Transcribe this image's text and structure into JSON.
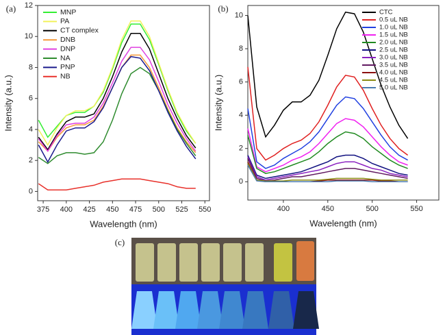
{
  "chart_data": [
    {
      "type": "line",
      "panel": "(a)",
      "x_label": "Wavelength (nm)",
      "y_label": "Intensity (a.u.)",
      "x": [
        370,
        380,
        390,
        400,
        410,
        420,
        430,
        440,
        450,
        460,
        470,
        480,
        490,
        500,
        510,
        520,
        530,
        540
      ],
      "xlim": [
        369,
        555
      ],
      "xticks": [
        375,
        400,
        425,
        450,
        475,
        500,
        525,
        550
      ],
      "ylim": [
        -0.6,
        12
      ],
      "yticks": [
        0,
        2,
        4,
        6,
        8,
        10,
        12
      ],
      "legend": "upper left",
      "series": [
        {
          "name": "MNP",
          "color": "#33ee33",
          "values": [
            4.6,
            3.5,
            4.2,
            4.9,
            5.1,
            5.1,
            5.5,
            6.4,
            7.9,
            9.6,
            10.8,
            10.8,
            9.8,
            8.2,
            6.5,
            5.0,
            3.9,
            3.1
          ]
        },
        {
          "name": "PA",
          "color": "#f2f25a",
          "values": [
            4.0,
            3.0,
            4.1,
            4.9,
            5.2,
            5.2,
            5.5,
            6.5,
            8.0,
            9.8,
            11.0,
            11.0,
            10.0,
            8.3,
            6.6,
            5.1,
            4.0,
            3.1
          ]
        },
        {
          "name": "CT complex",
          "color": "#000000",
          "values": [
            3.5,
            2.7,
            3.7,
            4.5,
            4.8,
            4.8,
            5.0,
            6.0,
            7.4,
            9.0,
            10.2,
            10.2,
            9.2,
            7.6,
            6.0,
            4.7,
            3.6,
            2.8
          ]
        },
        {
          "name": "DNB",
          "color": "#f59a3a",
          "values": [
            3.2,
            2.6,
            3.5,
            4.1,
            4.3,
            4.3,
            4.6,
            5.5,
            6.7,
            8.0,
            8.8,
            8.8,
            8.0,
            6.7,
            5.3,
            4.1,
            3.2,
            2.5
          ]
        },
        {
          "name": "DNP",
          "color": "#e040e0",
          "values": [
            3.4,
            2.6,
            3.6,
            4.3,
            4.4,
            4.4,
            4.8,
            5.7,
            7.0,
            8.4,
            9.3,
            9.3,
            8.5,
            7.1,
            5.6,
            4.4,
            3.4,
            2.6
          ]
        },
        {
          "name": "NA",
          "color": "#2e8b2e",
          "values": [
            2.2,
            1.8,
            2.3,
            2.5,
            2.5,
            2.4,
            2.5,
            3.2,
            4.6,
            6.3,
            7.6,
            8.0,
            7.6,
            6.5,
            5.2,
            4.0,
            3.1,
            2.3
          ]
        },
        {
          "name": "PNP",
          "color": "#1a1a8c",
          "values": [
            3.0,
            1.9,
            3.0,
            3.9,
            4.1,
            4.1,
            4.5,
            5.4,
            6.7,
            8.0,
            8.7,
            8.6,
            7.8,
            6.5,
            5.1,
            3.9,
            2.9,
            2.1
          ]
        },
        {
          "name": "NB",
          "color": "#e8302a",
          "values": [
            0.5,
            0.1,
            0.1,
            0.1,
            0.2,
            0.3,
            0.4,
            0.6,
            0.7,
            0.8,
            0.8,
            0.8,
            0.7,
            0.6,
            0.5,
            0.3,
            0.2,
            0.2
          ]
        }
      ]
    },
    {
      "type": "line",
      "panel": "(b)",
      "x_label": "Wavelength (nm)",
      "y_label": "Intensity (a.u.)",
      "x": [
        360,
        370,
        380,
        390,
        400,
        410,
        420,
        430,
        440,
        450,
        460,
        470,
        480,
        490,
        500,
        510,
        520,
        530,
        540
      ],
      "xlim": [
        360,
        575
      ],
      "xticks": [
        400,
        450,
        500,
        550
      ],
      "ylim": [
        -1.1,
        10.6
      ],
      "yticks": [
        0,
        2,
        4,
        6,
        8,
        10
      ],
      "legend": "upper right",
      "series": [
        {
          "name": "CTC",
          "color": "#000000",
          "values": [
            10.0,
            4.5,
            2.7,
            3.4,
            4.3,
            4.8,
            4.8,
            5.2,
            6.1,
            7.6,
            9.2,
            10.2,
            10.1,
            9.0,
            7.4,
            5.8,
            4.5,
            3.4,
            2.6
          ]
        },
        {
          "name": "0.5 uL NB",
          "color": "#e02020",
          "values": [
            6.9,
            2.0,
            1.3,
            1.6,
            2.0,
            2.3,
            2.5,
            2.9,
            3.6,
            4.6,
            5.7,
            6.4,
            6.3,
            5.5,
            4.4,
            3.4,
            2.6,
            2.0,
            1.6
          ]
        },
        {
          "name": "1.0 uL NB",
          "color": "#2040e0",
          "values": [
            4.4,
            1.2,
            0.8,
            1.0,
            1.4,
            1.7,
            2.0,
            2.4,
            3.0,
            3.8,
            4.6,
            5.1,
            5.0,
            4.4,
            3.6,
            2.8,
            2.1,
            1.6,
            1.3
          ]
        },
        {
          "name": "1.5 uL NB",
          "color": "#f020f0",
          "values": [
            3.2,
            0.9,
            0.6,
            0.8,
            1.0,
            1.3,
            1.5,
            1.8,
            2.3,
            2.9,
            3.5,
            3.8,
            3.7,
            3.3,
            2.7,
            2.1,
            1.6,
            1.2,
            1.0
          ]
        },
        {
          "name": "2.0 uL NB",
          "color": "#208a20",
          "values": [
            2.8,
            0.8,
            0.5,
            0.6,
            0.8,
            1.0,
            1.2,
            1.4,
            1.8,
            2.3,
            2.7,
            3.0,
            2.9,
            2.6,
            2.1,
            1.7,
            1.3,
            1.0,
            0.8
          ]
        },
        {
          "name": "2.5 uL NB",
          "color": "#101080",
          "values": [
            1.6,
            0.4,
            0.2,
            0.3,
            0.4,
            0.5,
            0.6,
            0.8,
            1.0,
            1.2,
            1.5,
            1.6,
            1.6,
            1.4,
            1.1,
            0.9,
            0.7,
            0.5,
            0.4
          ]
        },
        {
          "name": "3.0 uL NB",
          "color": "#8a20c0",
          "values": [
            1.5,
            0.3,
            0.1,
            0.2,
            0.3,
            0.4,
            0.5,
            0.6,
            0.7,
            0.9,
            1.1,
            1.2,
            1.2,
            1.0,
            0.8,
            0.7,
            0.5,
            0.4,
            0.3
          ]
        },
        {
          "name": "3.5 uL NB",
          "color": "#601860",
          "values": [
            1.4,
            0.2,
            0.05,
            0.1,
            0.2,
            0.3,
            0.3,
            0.4,
            0.5,
            0.6,
            0.7,
            0.8,
            0.8,
            0.7,
            0.6,
            0.5,
            0.4,
            0.3,
            0.2
          ]
        },
        {
          "name": "4.0 uL NB",
          "color": "#8b1010",
          "values": [
            1.2,
            0.1,
            0,
            0,
            0,
            0,
            0,
            0,
            0.05,
            0.1,
            0.1,
            0.1,
            0.1,
            0.1,
            0.1,
            0.05,
            0.05,
            0,
            0
          ]
        },
        {
          "name": "4.5 uL NB",
          "color": "#8a8a10",
          "values": [
            1.1,
            0.1,
            0.05,
            0.05,
            0.05,
            0.1,
            0.1,
            0.1,
            0.1,
            0.15,
            0.2,
            0.2,
            0.2,
            0.2,
            0.15,
            0.1,
            0.1,
            0.1,
            0.1
          ]
        },
        {
          "name": "5.0 uL NB",
          "color": "#4a7ab0",
          "values": [
            1.0,
            0.05,
            0,
            0,
            0,
            0,
            0,
            0,
            0,
            0,
            0.05,
            0.05,
            0.05,
            0.05,
            0,
            0,
            0,
            0,
            0
          ]
        }
      ]
    }
  ],
  "photo": {
    "label": "(c)"
  }
}
